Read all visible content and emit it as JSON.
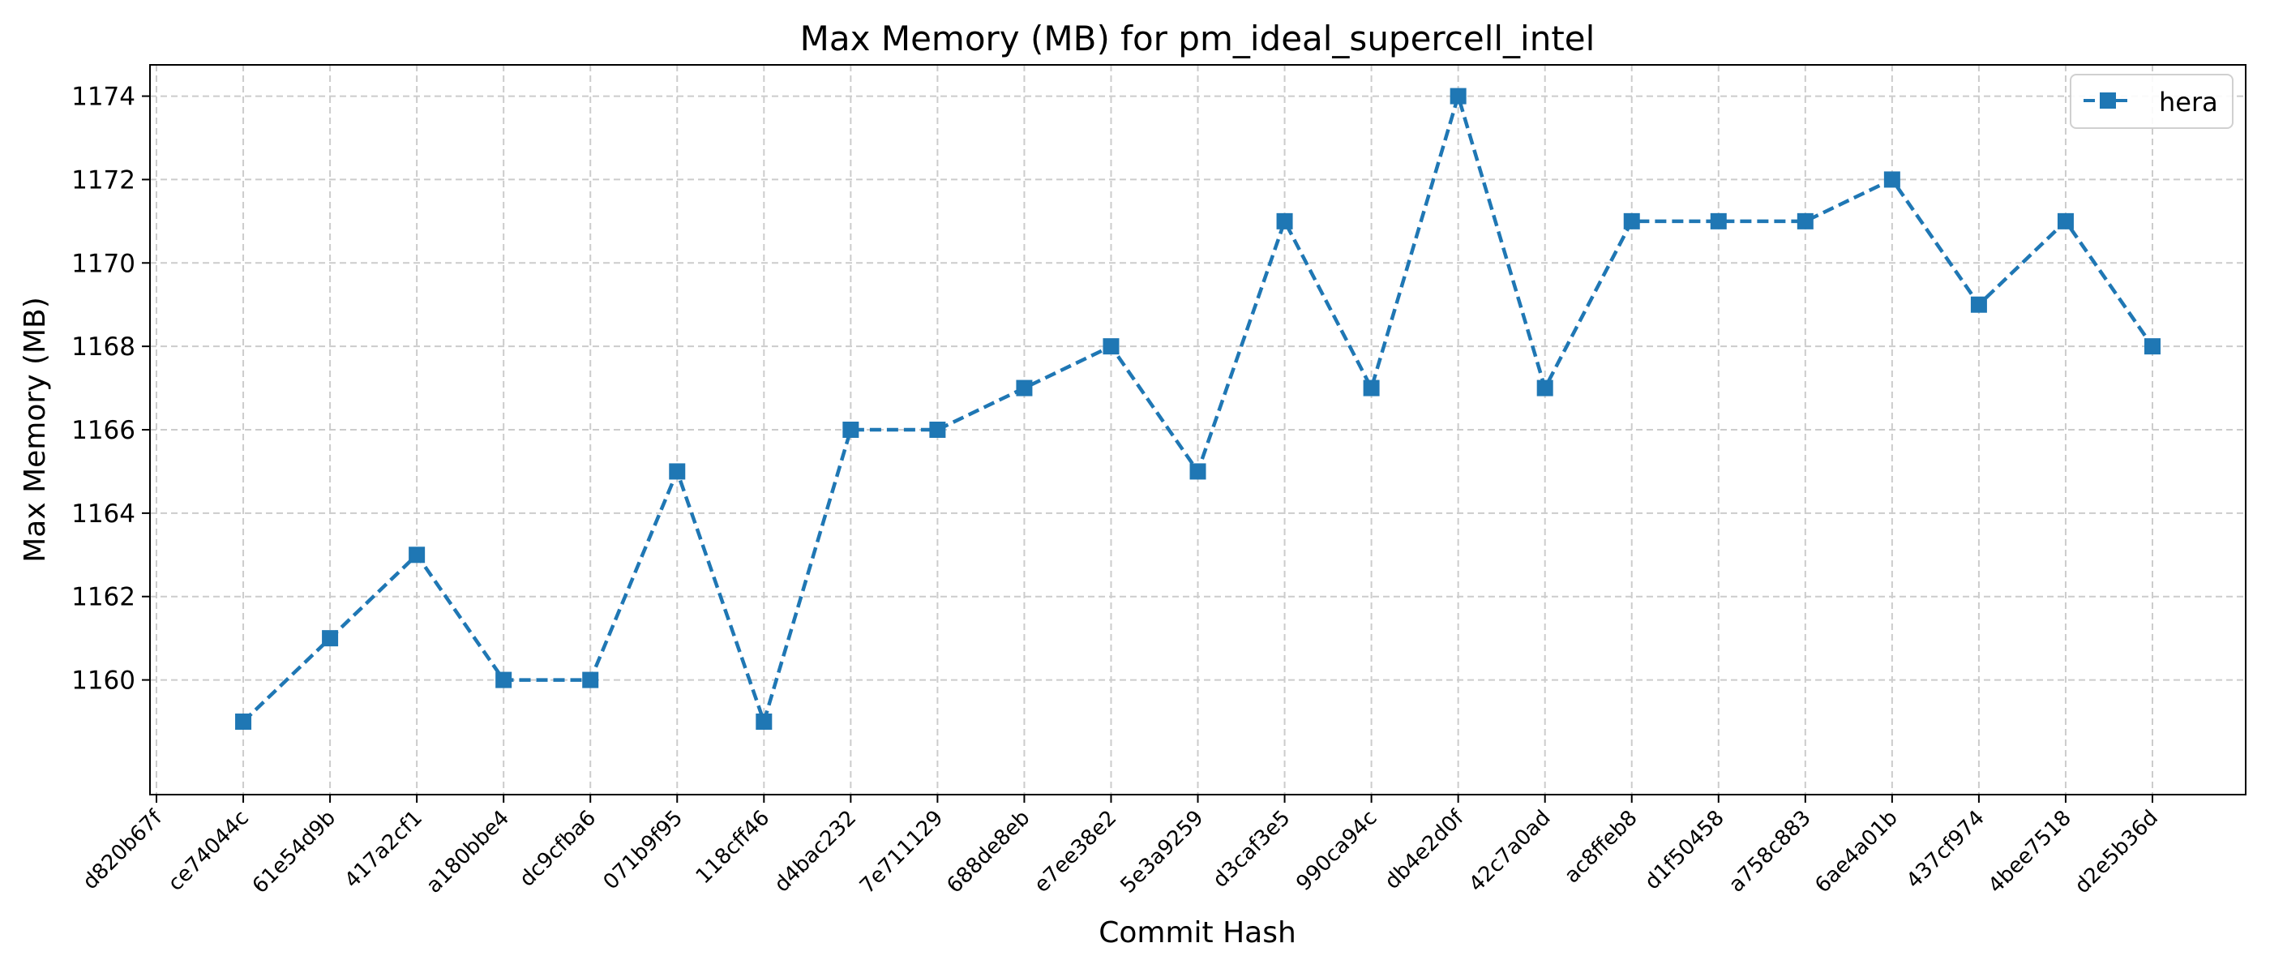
{
  "chart_data": {
    "type": "line",
    "title": "Max Memory (MB) for pm_ideal_supercell_intel",
    "xlabel": "Commit Hash",
    "ylabel": "Max Memory (MB)",
    "categories": [
      "d820b67f",
      "ce74044c",
      "61e54d9b",
      "417a2cf1",
      "a180bbe4",
      "dc9cfba6",
      "071b9f95",
      "118cff46",
      "d4bac232",
      "7e711129",
      "688de8eb",
      "e7ee38e2",
      "5e3a9259",
      "d3caf3e5",
      "990ca94c",
      "db4e2d0f",
      "42c7a0ad",
      "ac8ffeb8",
      "d1f50458",
      "a758c883",
      "6ae4a01b",
      "437cf974",
      "4bee7518",
      "d2e5b36d"
    ],
    "series": [
      {
        "name": "hera",
        "values": [
          null,
          1159,
          1161,
          1163,
          1160,
          1160,
          1165,
          1159,
          1166,
          1166,
          1167,
          1168,
          1165,
          1171,
          1167,
          1174,
          1167,
          1171,
          1171,
          1171,
          1172,
          1169,
          1171,
          1168
        ],
        "color": "#1f77b4",
        "line_style": "dashed",
        "marker": "square"
      }
    ],
    "yticks": [
      1160,
      1162,
      1164,
      1166,
      1168,
      1170,
      1172,
      1174
    ],
    "ylim": [
      1157.25,
      1174.75
    ],
    "grid": true,
    "legend": "top-right"
  }
}
